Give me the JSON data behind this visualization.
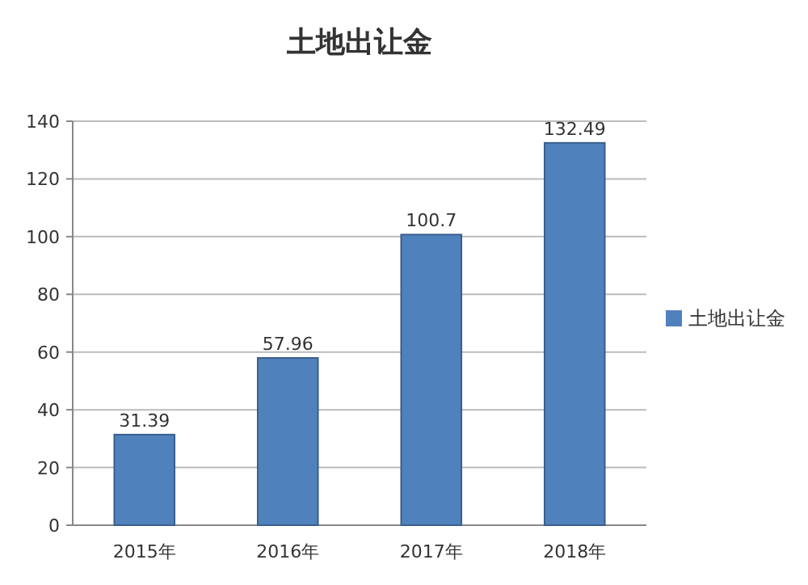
{
  "chart_data": {
    "type": "bar",
    "title": "土地出让金",
    "categories": [
      "2015年",
      "2016年",
      "2017年",
      "2018年"
    ],
    "series": [
      {
        "name": "土地出让金",
        "color": "#4f81bd",
        "values": [
          31.39,
          57.96,
          100.7,
          132.49
        ]
      }
    ],
    "ylim": [
      0,
      140
    ],
    "yticks": [
      0,
      20,
      40,
      60,
      80,
      100,
      120,
      140
    ],
    "grid": "y",
    "legend": "right",
    "data_labels": true
  }
}
